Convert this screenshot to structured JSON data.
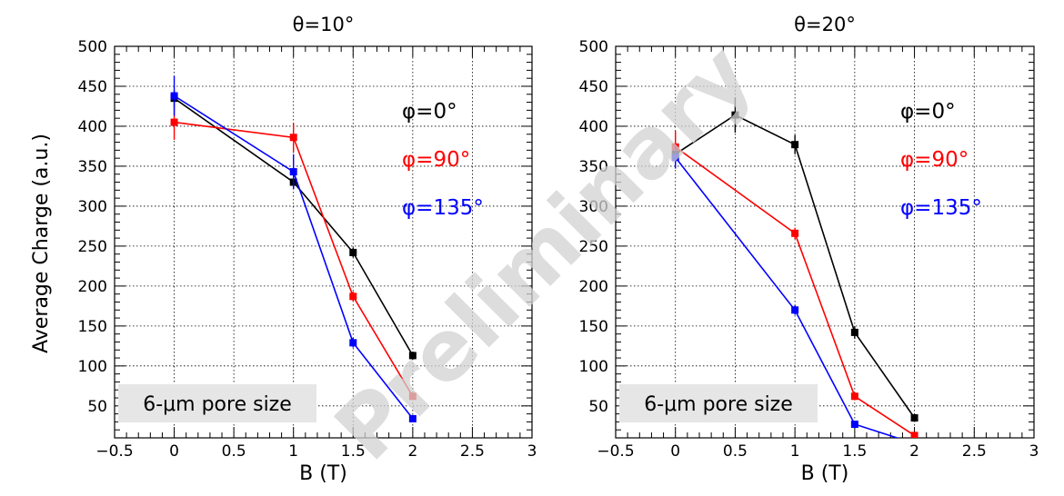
{
  "watermark": "Preliminary",
  "y_axis_title": "Average Charge (a.u.)",
  "chart_data": [
    {
      "type": "line",
      "title": "θ=10°",
      "xlabel": "B (T)",
      "ylabel": "Average Charge (a.u.)",
      "xlim": [
        -0.5,
        3
      ],
      "ylim": [
        10,
        500
      ],
      "xticks": [
        "−0.5",
        "0",
        "0.5",
        "1",
        "1.5",
        "2",
        "2.5",
        "3"
      ],
      "yticks": [
        "50",
        "100",
        "150",
        "200",
        "250",
        "300",
        "350",
        "400",
        "450",
        "500"
      ],
      "grid": true,
      "legend_position": "right",
      "annotation": "6-μm pore size",
      "series": [
        {
          "name": "φ=0°",
          "color": "#000000",
          "x": [
            0,
            1,
            1.5,
            2
          ],
          "y": [
            435,
            330,
            242,
            113
          ],
          "err": [
            10,
            8,
            6,
            5
          ]
        },
        {
          "name": "φ=90°",
          "color": "#ff0000",
          "x": [
            0,
            1,
            1.5,
            2
          ],
          "y": [
            405,
            386,
            187,
            62
          ],
          "err": [
            22,
            18,
            6,
            4
          ]
        },
        {
          "name": "φ=135°",
          "color": "#0000ff",
          "x": [
            0,
            1,
            1.5,
            2
          ],
          "y": [
            438,
            343,
            129,
            34
          ],
          "err": [
            25,
            22,
            6,
            4
          ]
        }
      ]
    },
    {
      "type": "line",
      "title": "θ=20°",
      "xlabel": "B (T)",
      "ylabel": "Average Charge (a.u.)",
      "xlim": [
        -0.5,
        3
      ],
      "ylim": [
        10,
        500
      ],
      "xticks": [
        "−0.5",
        "0",
        "0.5",
        "1",
        "1.5",
        "2",
        "2.5",
        "3"
      ],
      "yticks": [
        "50",
        "100",
        "150",
        "200",
        "250",
        "300",
        "350",
        "400",
        "450",
        "500"
      ],
      "grid": true,
      "legend_position": "right",
      "annotation": "6-μm pore size",
      "series": [
        {
          "name": "φ=0°",
          "color": "#000000",
          "x": [
            0,
            0.5,
            1,
            1.5,
            2
          ],
          "y": [
            365,
            414,
            377,
            142,
            35
          ],
          "err": [
            10,
            22,
            12,
            8,
            5
          ]
        },
        {
          "name": "φ=90°",
          "color": "#ff0000",
          "x": [
            0,
            1,
            1.5,
            2
          ],
          "y": [
            374,
            266,
            62,
            13
          ],
          "err": [
            20,
            7,
            5,
            4
          ]
        },
        {
          "name": "φ=135°",
          "color": "#0000ff",
          "x": [
            0,
            1,
            1.5,
            2
          ],
          "y": [
            361,
            170,
            27,
            3
          ],
          "err": [
            14,
            6,
            4,
            3
          ]
        }
      ]
    }
  ]
}
